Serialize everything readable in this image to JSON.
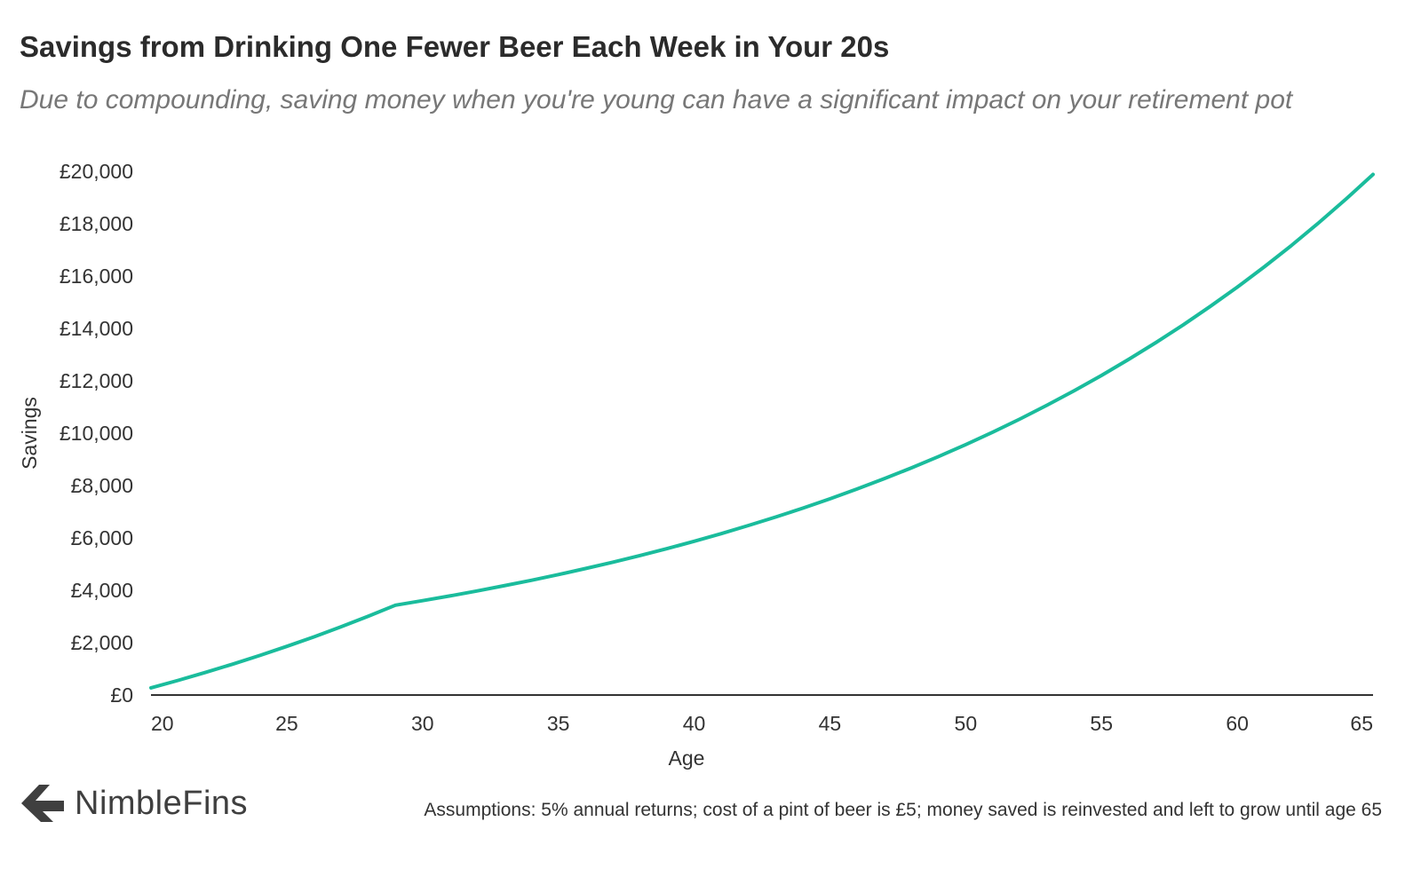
{
  "header": {
    "title": "Savings from Drinking One Fewer Beer Each Week in Your 20s",
    "subtitle": "Due to compounding, saving money when you're young can have a significant impact on your retirement pot"
  },
  "footer": {
    "brand": "NimbleFins",
    "note": "Assumptions: 5% annual returns; cost of a pint of beer is £5; money saved is reinvested and left to grow until age 65"
  },
  "colors": {
    "line": "#1abc9c",
    "axis": "#333333",
    "text": "#333333"
  },
  "chart_data": {
    "type": "line",
    "xlabel": "Age",
    "ylabel": "Savings",
    "xlim": [
      20,
      65
    ],
    "ylim": [
      0,
      20000
    ],
    "x_ticks": [
      20,
      25,
      30,
      35,
      40,
      45,
      50,
      55,
      60,
      65
    ],
    "y_ticks": [
      0,
      2000,
      4000,
      6000,
      8000,
      10000,
      12000,
      14000,
      16000,
      18000,
      20000
    ],
    "x_tick_labels": [
      "20",
      "25",
      "30",
      "35",
      "40",
      "45",
      "50",
      "55",
      "60",
      "65"
    ],
    "y_tick_labels": [
      "£0",
      "£2,000",
      "£4,000",
      "£6,000",
      "£8,000",
      "£10,000",
      "£12,000",
      "£14,000",
      "£16,000",
      "£18,000",
      "£20,000"
    ],
    "grid": false,
    "series": [
      {
        "x": [
          20,
          21,
          22,
          23,
          24,
          25,
          26,
          27,
          28,
          29,
          30,
          31,
          32,
          33,
          34,
          35,
          36,
          37,
          38,
          39,
          40,
          41,
          42,
          43,
          44,
          45,
          46,
          47,
          48,
          49,
          50,
          51,
          52,
          53,
          54,
          55,
          56,
          57,
          58,
          59,
          60,
          61,
          62,
          63,
          64,
          65
        ],
        "values": [
          273,
          560,
          860,
          1176,
          1508,
          1856,
          2222,
          2606,
          3009,
          3432,
          3604,
          3784,
          3973,
          4172,
          4380,
          4600,
          4830,
          5071,
          5325,
          5591,
          5871,
          6164,
          6473,
          6796,
          7136,
          7493,
          7867,
          8261,
          8674,
          9108,
          9563,
          10041,
          10543,
          11071,
          11624,
          12205,
          12816,
          13456,
          14129,
          14836,
          15577,
          16356,
          17174,
          18033,
          18935,
          19881
        ]
      }
    ]
  }
}
